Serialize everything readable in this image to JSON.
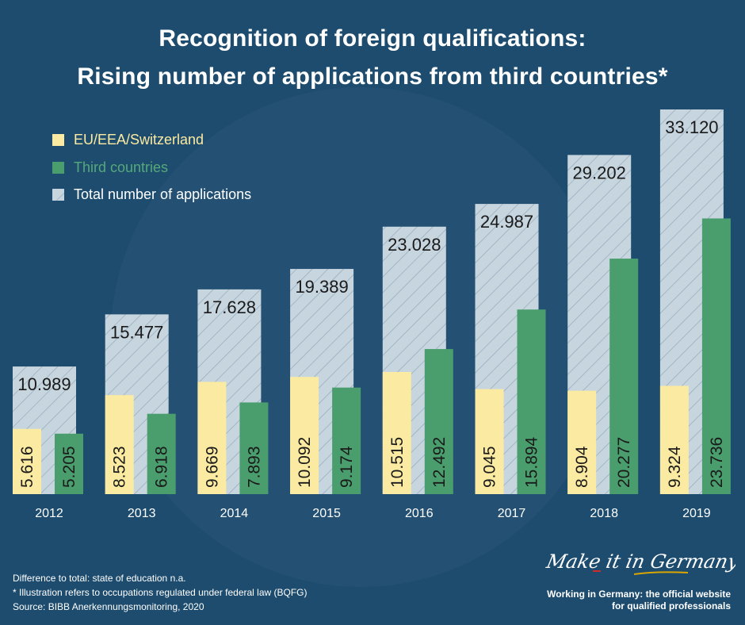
{
  "title": {
    "line1": "Recognition of foreign qualifications:",
    "line2": "Rising number of applications from third countries*"
  },
  "legend": {
    "eu": "EU/EEA/Switzerland",
    "third": "Third countries",
    "total": "Total number of applications"
  },
  "colors": {
    "background": "#1d4c6e",
    "background_circle": "#2a5678",
    "eu": "#fbeaa1",
    "third": "#4a9e6e",
    "total": "#c7d5df",
    "hatch": "#8fa6b8"
  },
  "chart_data": {
    "type": "bar",
    "categories": [
      "2012",
      "2013",
      "2014",
      "2015",
      "2016",
      "2017",
      "2018",
      "2019"
    ],
    "series": [
      {
        "name": "EU/EEA/Switzerland",
        "values": [
          5616,
          8523,
          9669,
          10092,
          10515,
          9045,
          8904,
          9324
        ],
        "labels": [
          "5.616",
          "8.523",
          "9.669",
          "10.092",
          "10.515",
          "9.045",
          "8.904",
          "9.324"
        ]
      },
      {
        "name": "Third countries",
        "values": [
          5205,
          6918,
          7893,
          9174,
          12492,
          15894,
          20277,
          23736
        ],
        "labels": [
          "5.205",
          "6.918",
          "7.893",
          "9.174",
          "12.492",
          "15.894",
          "20.277",
          "23.736"
        ]
      },
      {
        "name": "Total number of applications",
        "values": [
          10989,
          15477,
          17628,
          19389,
          23028,
          24987,
          29202,
          33120
        ],
        "labels": [
          "10.989",
          "15.477",
          "17.628",
          "19.389",
          "23.028",
          "24.987",
          "29.202",
          "33.120"
        ]
      }
    ],
    "ylim": [
      0,
      33120
    ],
    "legend_position": "top-left",
    "grid": false
  },
  "footnotes": {
    "line1": "Difference to total: state of education n.a.",
    "line2": "* Illustration refers to occupations regulated under federal law (BQFG)",
    "line3": "Source: BIBB Anerkennungsmonitoring, 2020"
  },
  "brand": {
    "logo_text": "Make it in Germany",
    "tagline_line1": "Working in Germany: the official website",
    "tagline_line2": "for qualified professionals"
  }
}
